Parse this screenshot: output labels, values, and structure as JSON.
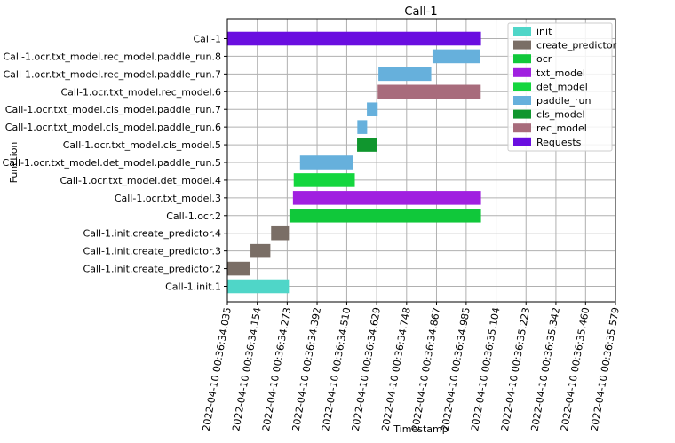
{
  "chart_data": {
    "type": "gantt",
    "title": "Call-1",
    "xlabel": "Timestamp",
    "ylabel": "Function",
    "grid": true,
    "legend_position": "top-right",
    "xlim": [
      0,
      1544
    ],
    "x_ticks": [
      {
        "value": 0,
        "label": "2022-04-10 00:36:34.035"
      },
      {
        "value": 119,
        "label": "2022-04-10 00:36:34.154"
      },
      {
        "value": 238,
        "label": "2022-04-10 00:36:34.273"
      },
      {
        "value": 357,
        "label": "2022-04-10 00:36:34.392"
      },
      {
        "value": 475,
        "label": "2022-04-10 00:36:34.510"
      },
      {
        "value": 594,
        "label": "2022-04-10 00:36:34.629"
      },
      {
        "value": 713,
        "label": "2022-04-10 00:36:34.748"
      },
      {
        "value": 832,
        "label": "2022-04-10 00:36:34.867"
      },
      {
        "value": 950,
        "label": "2022-04-10 00:36:34.985"
      },
      {
        "value": 1069,
        "label": "2022-04-10 00:36:35.104"
      },
      {
        "value": 1188,
        "label": "2022-04-10 00:36:35.223"
      },
      {
        "value": 1307,
        "label": "2022-04-10 00:36:35.342"
      },
      {
        "value": 1425,
        "label": "2022-04-10 00:36:35.460"
      },
      {
        "value": 1544,
        "label": "2022-04-10 00:36:35.579"
      }
    ],
    "legend": [
      {
        "name": "init",
        "color": "#4fd6c8"
      },
      {
        "name": "create_predictor",
        "color": "#7a6e66"
      },
      {
        "name": "ocr",
        "color": "#10c83a"
      },
      {
        "name": "txt_model",
        "color": "#a020e0"
      },
      {
        "name": "det_model",
        "color": "#14d63e"
      },
      {
        "name": "paddle_run",
        "color": "#66b0dc"
      },
      {
        "name": "cls_model",
        "color": "#10962e"
      },
      {
        "name": "rec_model",
        "color": "#a86c7c"
      },
      {
        "name": "Requests",
        "color": "#6a0ee0"
      }
    ],
    "rows": [
      {
        "label": "Call-1",
        "start": 0,
        "end": 1009,
        "category": "Requests"
      },
      {
        "label": "Call-1.ocr.txt_model.rec_model.paddle_run.8",
        "start": 816,
        "end": 1006,
        "category": "paddle_run"
      },
      {
        "label": "Call-1.ocr.txt_model.rec_model.paddle_run.7",
        "start": 601,
        "end": 811,
        "category": "paddle_run"
      },
      {
        "label": "Call-1.ocr.txt_model.rec_model.6",
        "start": 598,
        "end": 1008,
        "category": "rec_model"
      },
      {
        "label": "Call-1.ocr.txt_model.cls_model.paddle_run.7",
        "start": 555,
        "end": 598,
        "category": "paddle_run"
      },
      {
        "label": "Call-1.ocr.txt_model.cls_model.paddle_run.6",
        "start": 517,
        "end": 556,
        "category": "paddle_run"
      },
      {
        "label": "Call-1.ocr.txt_model.cls_model.5",
        "start": 516,
        "end": 597,
        "category": "cls_model"
      },
      {
        "label": "Call-1.ocr.txt_model.det_model.paddle_run.5",
        "start": 289,
        "end": 501,
        "category": "paddle_run"
      },
      {
        "label": "Call-1.ocr.txt_model.det_model.4",
        "start": 264,
        "end": 507,
        "category": "det_model"
      },
      {
        "label": "Call-1.ocr.txt_model.3",
        "start": 261,
        "end": 1009,
        "category": "txt_model"
      },
      {
        "label": "Call-1.ocr.2",
        "start": 247,
        "end": 1009,
        "category": "ocr"
      },
      {
        "label": "Call-1.init.create_predictor.4",
        "start": 174,
        "end": 245,
        "category": "create_predictor"
      },
      {
        "label": "Call-1.init.create_predictor.3",
        "start": 92,
        "end": 171,
        "category": "create_predictor"
      },
      {
        "label": "Call-1.init.create_predictor.2",
        "start": 0,
        "end": 91,
        "category": "create_predictor"
      },
      {
        "label": "Call-1.init.1",
        "start": 0,
        "end": 245,
        "category": "init"
      }
    ]
  }
}
